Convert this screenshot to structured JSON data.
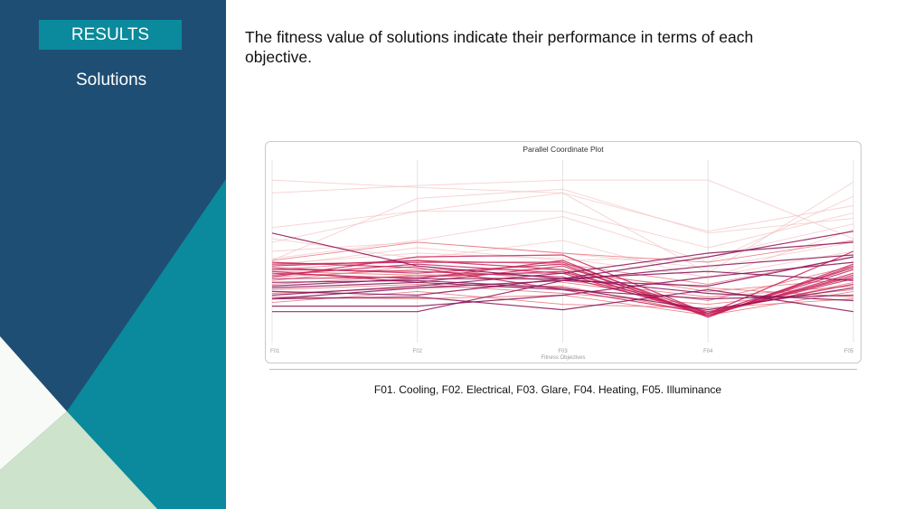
{
  "slide": {
    "section_label": "RESULTS",
    "subtitle": "Solutions",
    "headline": "The fitness value of solutions indicate their performance in terms of each objective.",
    "caption": "F01. Cooling, F02. Electrical, F03. Glare, F04. Heating, F05. Illuminance"
  },
  "colors": {
    "sidebar_dark": "#1f4e74",
    "sidebar_teal": "#0a8a9c",
    "sidebar_mint": "#cde3cc"
  },
  "chart_data": {
    "type": "parallel-coordinates",
    "title": "Parallel Coordinate Plot",
    "xlabel": "Fitness Objectives",
    "axes": [
      "F01",
      "F02",
      "F03",
      "F04",
      "F05"
    ],
    "ylim": [
      0,
      1
    ],
    "grid": true,
    "color_scale": [
      "#f3c2c2",
      "#e8707a",
      "#c8235a",
      "#8a0e55"
    ],
    "lines": [
      [
        0.89,
        0.85,
        0.82,
        0.38,
        0.88
      ],
      [
        0.82,
        0.86,
        0.89,
        0.89,
        0.57
      ],
      [
        0.63,
        0.72,
        0.82,
        0.61,
        0.75
      ],
      [
        0.55,
        0.72,
        0.72,
        0.52,
        0.71
      ],
      [
        0.45,
        0.79,
        0.84,
        0.6,
        0.68
      ],
      [
        0.46,
        0.56,
        0.69,
        0.44,
        0.8
      ],
      [
        0.57,
        0.46,
        0.56,
        0.35,
        0.62
      ],
      [
        0.42,
        0.52,
        0.45,
        0.47,
        0.65
      ],
      [
        0.5,
        0.55,
        0.49,
        0.41,
        0.55
      ],
      [
        0.43,
        0.49,
        0.46,
        0.36,
        0.5
      ],
      [
        0.4,
        0.45,
        0.43,
        0.32,
        0.47
      ],
      [
        0.36,
        0.4,
        0.4,
        0.28,
        0.35
      ],
      [
        0.39,
        0.37,
        0.38,
        0.3,
        0.25
      ],
      [
        0.34,
        0.42,
        0.33,
        0.23,
        0.42
      ],
      [
        0.32,
        0.37,
        0.34,
        0.25,
        0.31
      ],
      [
        0.29,
        0.32,
        0.27,
        0.21,
        0.29
      ],
      [
        0.27,
        0.3,
        0.31,
        0.16,
        0.33
      ],
      [
        0.25,
        0.24,
        0.26,
        0.15,
        0.28
      ],
      [
        0.22,
        0.28,
        0.21,
        0.19,
        0.24
      ],
      [
        0.45,
        0.55,
        0.49,
        0.44,
        0.56
      ],
      [
        0.43,
        0.44,
        0.44,
        0.16,
        0.41
      ],
      [
        0.42,
        0.45,
        0.4,
        0.15,
        0.37
      ],
      [
        0.41,
        0.38,
        0.43,
        0.14,
        0.42
      ],
      [
        0.4,
        0.39,
        0.36,
        0.17,
        0.32
      ],
      [
        0.44,
        0.41,
        0.29,
        0.16,
        0.36
      ],
      [
        0.37,
        0.43,
        0.38,
        0.15,
        0.4
      ],
      [
        0.38,
        0.35,
        0.45,
        0.14,
        0.43
      ],
      [
        0.35,
        0.36,
        0.39,
        0.16,
        0.35
      ],
      [
        0.36,
        0.47,
        0.48,
        0.16,
        0.5
      ],
      [
        0.39,
        0.33,
        0.42,
        0.15,
        0.38
      ],
      [
        0.33,
        0.34,
        0.3,
        0.18,
        0.3
      ],
      [
        0.31,
        0.35,
        0.35,
        0.47,
        0.61
      ],
      [
        0.26,
        0.31,
        0.38,
        0.49,
        0.55
      ],
      [
        0.24,
        0.3,
        0.34,
        0.42,
        0.48
      ],
      [
        0.2,
        0.2,
        0.26,
        0.36,
        0.44
      ],
      [
        0.28,
        0.26,
        0.35,
        0.39,
        0.34
      ],
      [
        0.17,
        0.17,
        0.34,
        0.31,
        0.47
      ],
      [
        0.6,
        0.42,
        0.35,
        0.27,
        0.23
      ],
      [
        0.3,
        0.33,
        0.29,
        0.24,
        0.26
      ],
      [
        0.24,
        0.25,
        0.18,
        0.29,
        0.17
      ]
    ]
  }
}
